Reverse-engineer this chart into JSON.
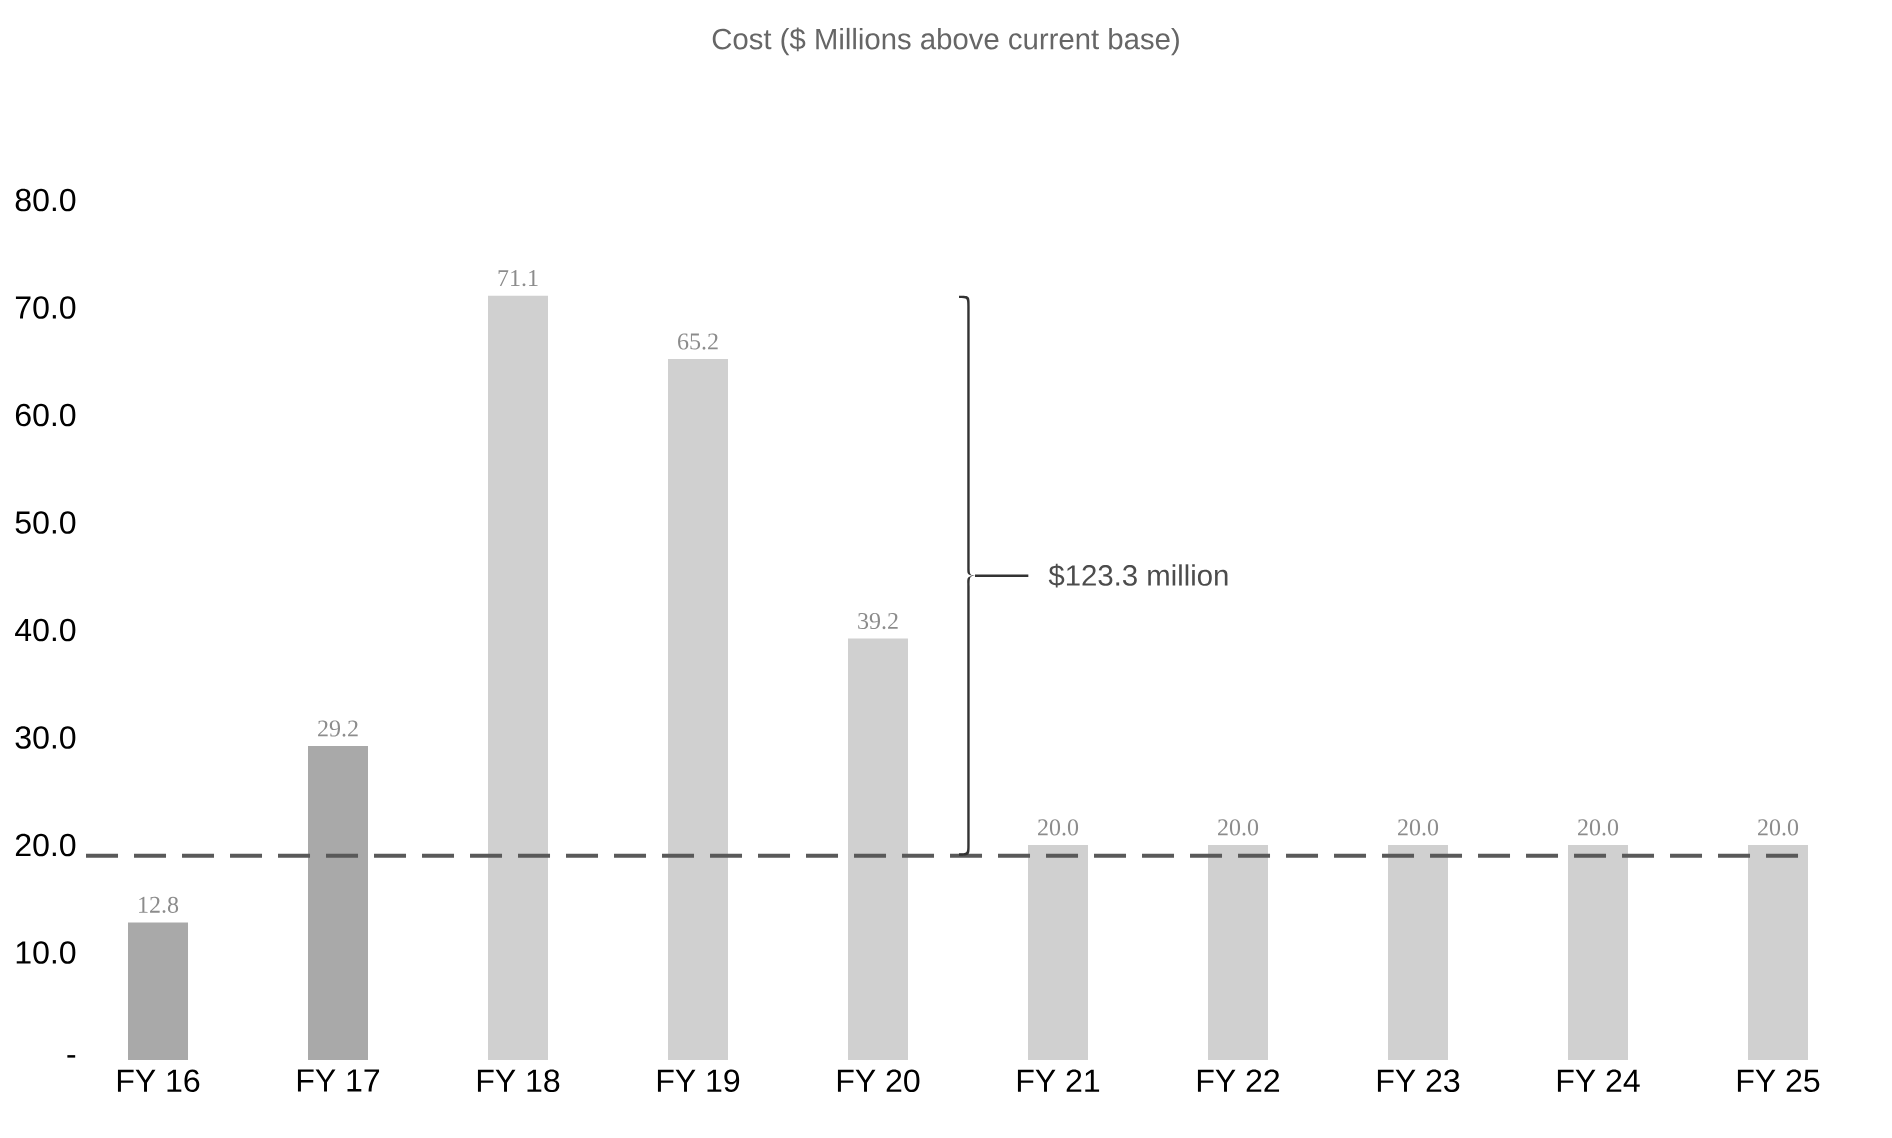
{
  "chart_data": {
    "type": "bar",
    "title": "Cost ($ Millions above current base)",
    "categories": [
      "FY 16",
      "FY 17",
      "FY 18",
      "FY 19",
      "FY 20",
      "FY 21",
      "FY 22",
      "FY 23",
      "FY 24",
      "FY 25"
    ],
    "values": [
      12.8,
      29.2,
      71.1,
      65.2,
      39.2,
      20.0,
      20.0,
      20.0,
      20.0,
      20.0
    ],
    "value_labels": [
      "12.8",
      "29.2",
      "71.1",
      "65.2",
      "39.2",
      "20.0",
      "20.0",
      "20.0",
      "20.0",
      "20.0"
    ],
    "colors": [
      "#a9a9a9",
      "#a9a9a9",
      "#d0d0d0",
      "#d0d0d0",
      "#d0d0d0",
      "#d0d0d0",
      "#d0d0d0",
      "#d0d0d0",
      "#d0d0d0",
      "#d0d0d0"
    ],
    "ylim": [
      0,
      80
    ],
    "yticks": [
      {
        "value": 0,
        "label": "-"
      },
      {
        "value": 10,
        "label": "10.0"
      },
      {
        "value": 20,
        "label": "20.0"
      },
      {
        "value": 30,
        "label": "30.0"
      },
      {
        "value": 40,
        "label": "40.0"
      },
      {
        "value": 50,
        "label": "50.0"
      },
      {
        "value": 60,
        "label": "60.0"
      },
      {
        "value": 70,
        "label": "70.0"
      },
      {
        "value": 80,
        "label": "80.0"
      }
    ],
    "ref_lines": [
      {
        "axis": "y",
        "value": 19,
        "color": "#595959",
        "line_style": "dashed"
      }
    ],
    "annotations": [
      "$123.3 million"
    ]
  }
}
